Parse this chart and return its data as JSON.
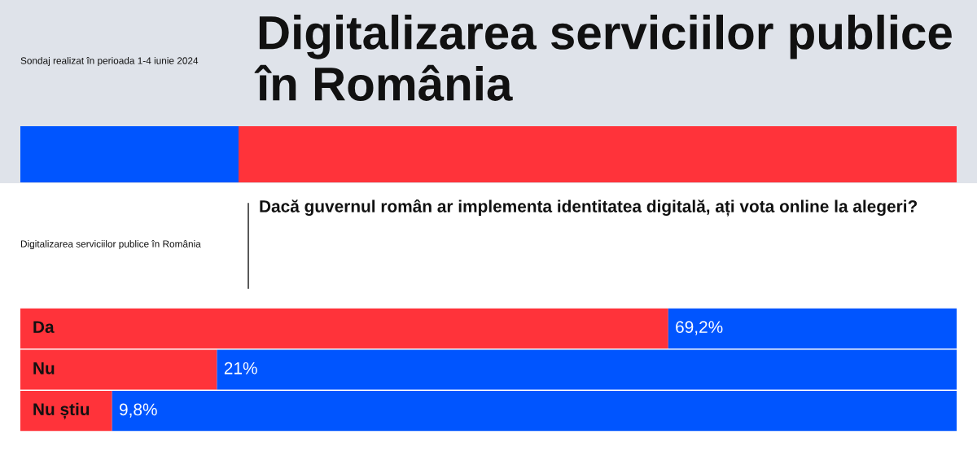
{
  "chart_data": {
    "type": "bar",
    "orientation": "horizontal",
    "stacked": true,
    "title": "Digitalizarea serviciilor publice în România",
    "subtitle": "Dacă guvernul român ar implementa identitatea digitală, ați vota online la alegeri?",
    "annotations": [
      "Sondaj realizat în perioada 1-4 iunie 2024",
      "Digitalizarea serviciilor publice în România"
    ],
    "categories": [
      "Da",
      "Nu",
      "Nu știu"
    ],
    "series": [
      {
        "color": "#ff333a",
        "values": [
          69.2,
          21,
          9.8
        ],
        "value_labels": [
          "69,2%",
          "21%",
          "9,8%"
        ]
      },
      {
        "color": "#0055ff",
        "values": [
          30.8,
          79,
          90.2
        ]
      }
    ]
  }
}
